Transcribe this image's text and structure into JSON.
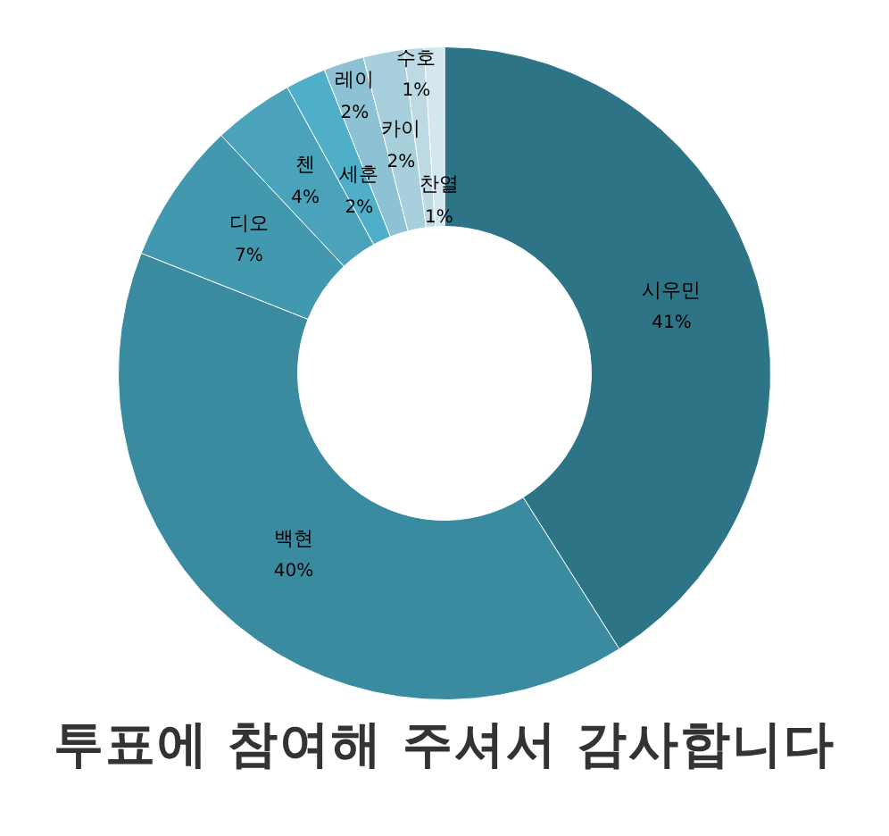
{
  "chart_data": {
    "type": "donut",
    "title": "투표에 참여해 주셔서 감사합니다",
    "categories": [
      "시우민",
      "백현",
      "디오",
      "첸",
      "세훈",
      "레이",
      "카이",
      "수호",
      "찬열"
    ],
    "values": [
      41,
      40,
      7,
      4,
      2,
      2,
      2,
      1,
      1
    ],
    "colors": [
      "#2e7487",
      "#3a8ba0",
      "#4298ae",
      "#4aa3ba",
      "#4fafc8",
      "#8cc2d4",
      "#a8cfdc",
      "#bcd9e4",
      "#d4e6ee"
    ],
    "value_labels": [
      "41%",
      "40%",
      "7%",
      "4%",
      "2%",
      "2%",
      "2%",
      "1%",
      "1%"
    ],
    "legend": false
  }
}
